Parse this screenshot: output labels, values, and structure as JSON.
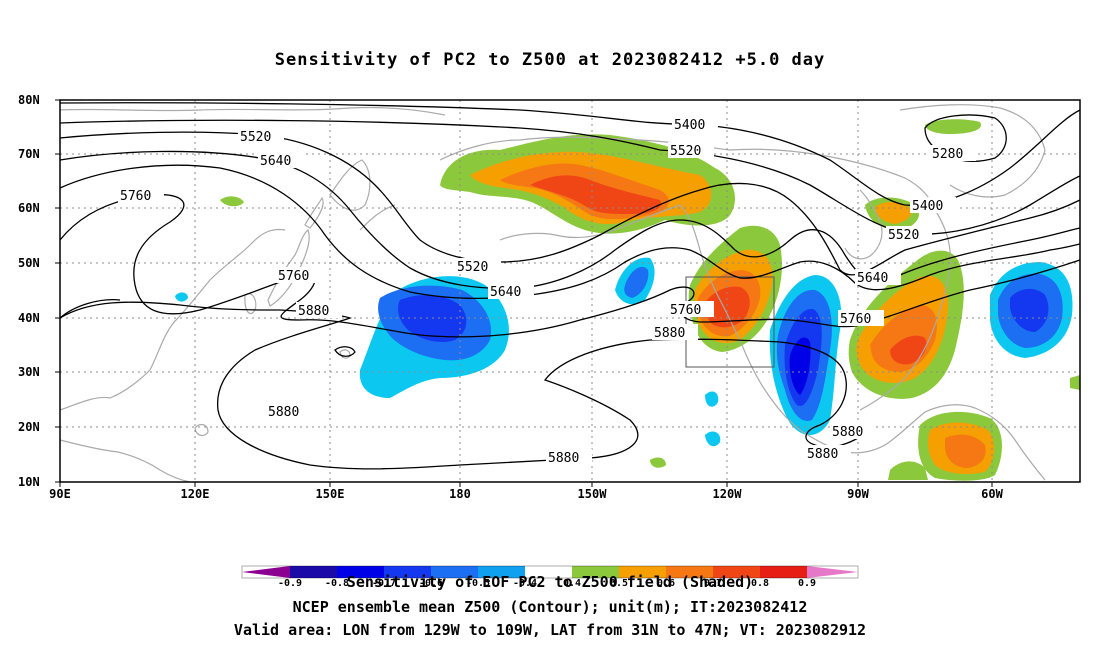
{
  "title": "Sensitivity of PC2 to Z500 at 2023082412 +5.0 day",
  "axes": {
    "lat_labels": [
      "80N",
      "70N",
      "60N",
      "50N",
      "40N",
      "30N",
      "20N",
      "10N"
    ],
    "lon_labels": [
      "90E",
      "120E",
      "150E",
      "180",
      "150W",
      "120W",
      "90W",
      "60W"
    ]
  },
  "contour_labels": [
    "5400",
    "5520",
    "5640",
    "5760",
    "5880",
    "5280"
  ],
  "colorbar": {
    "levels": [
      "-0.9",
      "-0.8",
      "-0.7",
      "-0.6",
      "-0.5",
      "-0.4",
      "0.4",
      "0.5",
      "0.6",
      "0.7",
      "0.8",
      "0.9"
    ],
    "colors": [
      "#8b0090",
      "#1a0aa8",
      "#0000e6",
      "#1438f0",
      "#1c6ef2",
      "#0fa0f0",
      "#0cc8f0",
      "#ffffff",
      "#8cc83c",
      "#f5a000",
      "#f57814",
      "#f04616",
      "#e61e14",
      "#e678c8"
    ]
  },
  "footer": {
    "line1": "Sensitivity of EOF PC2 to Z500 field (Shaded)",
    "line2": "NCEP ensemble mean Z500 (Contour); unit(m); IT:2023082412",
    "line3": "Valid area: LON from 129W to 109W, LAT from 31N to 47N; VT: 2023082912"
  },
  "colors": {
    "land_outline": "#aaaaaa",
    "contour": "#000000",
    "grid": "#8c8c8c"
  }
}
